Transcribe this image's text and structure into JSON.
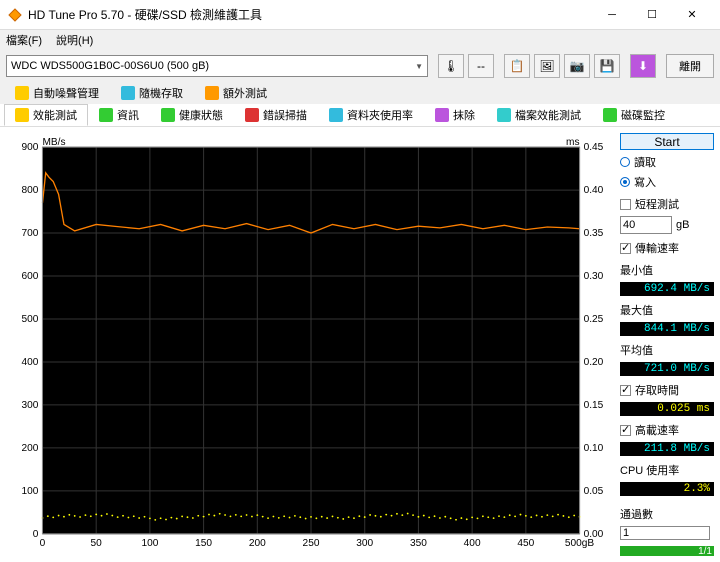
{
  "window": {
    "title": "HD Tune Pro 5.70 - 硬碟/SSD 檢測維護工具",
    "icon_glyph": "◆"
  },
  "menu": {
    "file": "檔案(F)",
    "help": "說明(H)"
  },
  "drive": {
    "selected": "WDC WDS500G1B0C-00S6U0 (500 gB)"
  },
  "toolbar": {
    "temp_icon": "🌡",
    "temp_value": "--",
    "btn_copy": "📋",
    "btn_shot": "🖼",
    "btn_cam": "📷",
    "btn_save": "💾",
    "btn_down": "⬇",
    "btn_exit": "離開"
  },
  "tabs_upper": [
    {
      "icon": "i-y",
      "label": "自動噪聲管理"
    },
    {
      "icon": "i-b",
      "label": "隨機存取"
    },
    {
      "icon": "i-o",
      "label": "額外測試"
    }
  ],
  "tabs_lower": [
    {
      "icon": "i-y",
      "label": "效能測試",
      "active": true
    },
    {
      "icon": "i-g",
      "label": "資訊"
    },
    {
      "icon": "i-g",
      "label": "健康狀態"
    },
    {
      "icon": "i-r",
      "label": "錯誤掃描"
    },
    {
      "icon": "i-b",
      "label": "資料夾使用率"
    },
    {
      "icon": "i-p",
      "label": "抹除"
    },
    {
      "icon": "i-c",
      "label": "檔案效能測試"
    },
    {
      "icon": "i-g",
      "label": "磁碟監控"
    }
  ],
  "chart": {
    "y_label": "MB/s",
    "y2_label": "ms",
    "xlim": [
      0,
      500
    ],
    "x_unit": "gB",
    "ylim": [
      0,
      900
    ],
    "ytick_step": 100,
    "y2lim": [
      0,
      0.45
    ],
    "y2tick_step": 0.05,
    "xtick_step": 50,
    "bg": "#000000",
    "grid": "#333333",
    "rate_color": "#ff8000",
    "cpu_color": "#ffff00",
    "axis_text": "#000000",
    "rate_series": {
      "comment": "approx throughput MB/s sampled every ~10gB",
      "px": [
        0,
        3,
        6,
        10,
        15,
        20,
        30,
        50,
        70,
        90,
        110,
        130,
        150,
        170,
        190,
        210,
        230,
        250,
        270,
        290,
        310,
        330,
        350,
        370,
        390,
        410,
        430,
        450,
        470,
        490,
        500
      ],
      "py": [
        770,
        840,
        830,
        820,
        790,
        720,
        705,
        720,
        715,
        710,
        720,
        705,
        718,
        710,
        722,
        708,
        718,
        700,
        720,
        710,
        720,
        708,
        716,
        712,
        720,
        710,
        718,
        708,
        714,
        712,
        710
      ]
    },
    "cpu_series": {
      "comment": "cpu usage scatter ~40 MB/s equivalent on left scale",
      "y_base": 40,
      "jitter": 8
    }
  },
  "side": {
    "start": "Start",
    "read": "讀取",
    "write": "寫入",
    "mode": "write",
    "short_test": "短程測試",
    "short_val": "40",
    "short_unit": "gB",
    "transfer": "傳輸速率",
    "min_lbl": "最小值",
    "min_val": "692.4 MB/s",
    "max_lbl": "最大值",
    "max_val": "844.1 MB/s",
    "avg_lbl": "平均值",
    "avg_val": "721.0 MB/s",
    "acc_lbl": "存取時間",
    "acc_val": "0.025 ms",
    "burst_lbl": "高載速率",
    "burst_val": "211.8 MB/s",
    "cpu_lbl": "CPU 使用率",
    "cpu_val": "2.3%",
    "pass_lbl": "通過數",
    "pass_count": "1",
    "pass_total": "1/1"
  }
}
